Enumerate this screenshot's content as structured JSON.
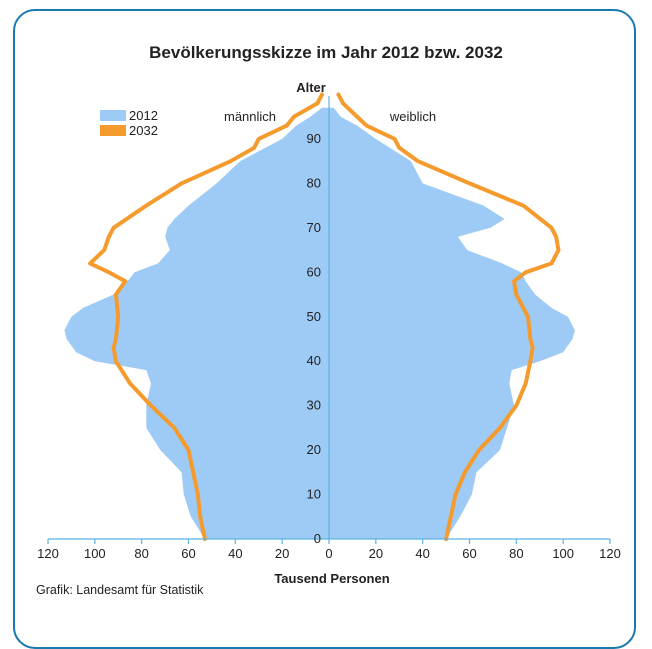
{
  "chart_data": {
    "type": "area",
    "title": "Bevölkerungsskizze im Jahr 2012 bzw. 2032",
    "ylabel": "Alter",
    "xlabel": "Tausend Personen",
    "left_label": "männlich",
    "right_label": "weiblich",
    "source": "Grafik: Landesamt für Statistik",
    "x_ticks": [
      "120",
      "100",
      "80",
      "60",
      "40",
      "20",
      "0",
      "20",
      "40",
      "60",
      "80",
      "100",
      "120"
    ],
    "y_ticks": [
      "0",
      "10",
      "20",
      "30",
      "40",
      "50",
      "60",
      "70",
      "80",
      "90"
    ],
    "xlim": [
      -120,
      120
    ],
    "ylim": [
      0,
      100
    ],
    "legend": {
      "position": "top-left"
    },
    "colors": {
      "s2012": "#9ecbf5",
      "s2032": "#f59a2c",
      "axis": "#5bb3e0",
      "frame": "#1a7ab0"
    },
    "series": [
      {
        "name": "2012",
        "type": "area",
        "age": [
          0,
          5,
          10,
          15,
          20,
          25,
          30,
          35,
          38,
          40,
          42,
          45,
          47,
          50,
          52,
          55,
          58,
          60,
          62,
          65,
          68,
          70,
          72,
          75,
          80,
          85,
          90,
          93,
          95,
          97
        ],
        "male": [
          53,
          59,
          62,
          63,
          72,
          78,
          78,
          76,
          78,
          100,
          108,
          112,
          113,
          110,
          105,
          92,
          86,
          83,
          73,
          68,
          70,
          69,
          66,
          60,
          48,
          38,
          20,
          14,
          8,
          3
        ],
        "female": [
          50,
          56,
          61,
          63,
          73,
          76,
          79,
          77,
          78,
          90,
          100,
          104,
          105,
          102,
          95,
          88,
          84,
          82,
          74,
          59,
          55,
          69,
          75,
          66,
          40,
          35,
          20,
          12,
          5,
          2
        ]
      },
      {
        "name": "2032",
        "type": "line",
        "age": [
          0,
          5,
          10,
          15,
          20,
          25,
          30,
          35,
          40,
          43,
          45,
          50,
          55,
          58,
          60,
          62,
          65,
          68,
          70,
          75,
          80,
          85,
          88,
          90,
          93,
          95,
          98,
          100
        ],
        "male": [
          53,
          55,
          56,
          58,
          60,
          66,
          76,
          85,
          91,
          92,
          91,
          90,
          91,
          87,
          94,
          102,
          96,
          94,
          92,
          78,
          63,
          42,
          32,
          30,
          18,
          15,
          5,
          3
        ],
        "female": [
          50,
          52,
          54,
          58,
          64,
          73,
          80,
          84,
          86,
          87,
          86,
          85,
          80,
          79,
          84,
          95,
          98,
          97,
          95,
          83,
          60,
          38,
          30,
          28,
          16,
          12,
          6,
          4
        ]
      }
    ]
  }
}
